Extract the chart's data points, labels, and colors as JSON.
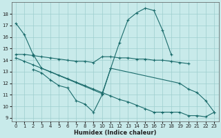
{
  "xlabel": "Humidex (Indice chaleur)",
  "bg_color": "#c8eaea",
  "grid_color": "#9ecece",
  "line_color": "#1a6b6b",
  "xlim": [
    -0.5,
    23.5
  ],
  "ylim": [
    8.7,
    19.0
  ],
  "yticks": [
    9,
    10,
    11,
    12,
    13,
    14,
    15,
    16,
    17,
    18
  ],
  "xticks": [
    0,
    1,
    2,
    3,
    4,
    5,
    6,
    7,
    8,
    9,
    10,
    11,
    12,
    13,
    14,
    15,
    16,
    17,
    18,
    19,
    20,
    21,
    22,
    23
  ],
  "series1_x": [
    0,
    1,
    2,
    3,
    10,
    11,
    12,
    13,
    14,
    15,
    16,
    17,
    18
  ],
  "series1_y": [
    17.2,
    16.2,
    14.5,
    13.3,
    11.1,
    13.3,
    15.5,
    17.5,
    18.1,
    18.5,
    18.3,
    16.6,
    14.5
  ],
  "series2_x": [
    0,
    1,
    2,
    3,
    4,
    5,
    6,
    7,
    8,
    9,
    10,
    11,
    12,
    13,
    14,
    15,
    16,
    17,
    18,
    19,
    20
  ],
  "series2_y": [
    14.5,
    14.5,
    14.4,
    14.3,
    14.2,
    14.1,
    14.0,
    13.9,
    13.9,
    13.8,
    14.3,
    14.3,
    14.2,
    14.2,
    14.1,
    14.1,
    14.0,
    14.0,
    13.9,
    13.8,
    13.7
  ],
  "series3_x": [
    2,
    3,
    4,
    5,
    6,
    7,
    8,
    9,
    10,
    11,
    19,
    20,
    21,
    22,
    23
  ],
  "series3_y": [
    13.2,
    12.9,
    12.3,
    11.8,
    11.6,
    10.5,
    10.2,
    9.5,
    11.0,
    13.3,
    12.0,
    11.5,
    11.2,
    10.5,
    9.5
  ],
  "series4_x": [
    0,
    1,
    2,
    3,
    4,
    5,
    6,
    7,
    8,
    9,
    10,
    11,
    12,
    13,
    14,
    15,
    16,
    17,
    18,
    19,
    20,
    21,
    22,
    23
  ],
  "series4_y": [
    14.2,
    13.9,
    13.6,
    13.3,
    13.0,
    12.7,
    12.4,
    12.1,
    11.8,
    11.5,
    11.2,
    10.9,
    10.6,
    10.4,
    10.1,
    9.8,
    9.5,
    9.5,
    9.5,
    9.5,
    9.2,
    9.2,
    9.1,
    9.5
  ]
}
